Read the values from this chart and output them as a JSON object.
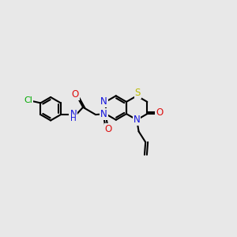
{
  "bg_color": "#e8e8e8",
  "C": "#000000",
  "N": "#1010dd",
  "O": "#dd1010",
  "S": "#bbbb00",
  "Cl": "#00aa00"
}
